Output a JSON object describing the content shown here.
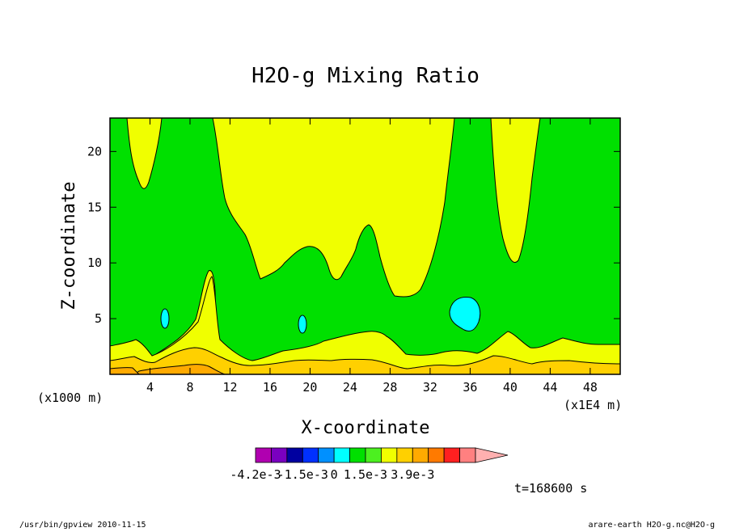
{
  "chart_data": {
    "type": "contour",
    "title": "H2O-g Mixing Ratio",
    "xlabel": "X-coordinate",
    "ylabel": "Z-coordinate",
    "x_unit_label": "(x1000 m)",
    "x_scale_label": "(x1E4 m)",
    "xlim": [
      0,
      51
    ],
    "ylim": [
      0,
      23
    ],
    "x_ticks": [
      4,
      8,
      12,
      16,
      20,
      24,
      28,
      32,
      36,
      40,
      44,
      48
    ],
    "y_ticks": [
      5,
      10,
      15,
      20
    ],
    "colorbar": {
      "colors": [
        "#b000b0",
        "#7a00c0",
        "#0000a0",
        "#0030ff",
        "#0090ff",
        "#00ffff",
        "#00e000",
        "#4cf020",
        "#f0ff00",
        "#ffd000",
        "#ffaa00",
        "#ff7a00",
        "#ff2020",
        "#ff8080",
        "#ffb0b0"
      ],
      "labels": [
        "-4.2e-3",
        "-1.5e-3",
        "0",
        "1.5e-3",
        "3.9e-3"
      ]
    },
    "regions": {
      "background_color": "#00e000",
      "yellow_color": "#f0ff00",
      "cyan_color": "#00ffff",
      "gold_color": "#ffd000",
      "orange_color": "#ffaa00"
    },
    "time_label": "t=168600 s"
  },
  "footer": {
    "left": "/usr/bin/gpview   2010-11-15",
    "right": "arare-earth_H2O-g.nc@H2O-g"
  }
}
